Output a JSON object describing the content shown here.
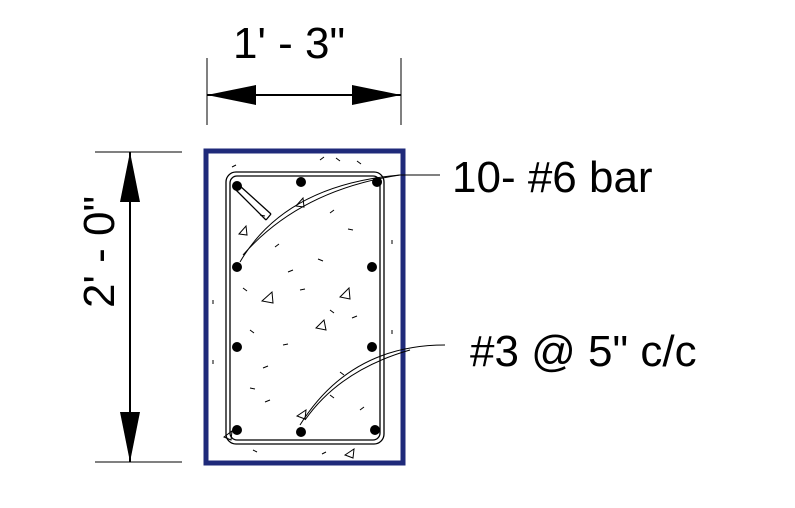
{
  "dimensions": {
    "width_label": "1' - 3\"",
    "height_label": "2' - 0\""
  },
  "annotations": {
    "longitudinal_bars": "10- #6 bar",
    "stirrups": "#3 @ 5\" c/c"
  },
  "colors": {
    "section_outline": "#1f2a7a",
    "linework": "#000000"
  }
}
